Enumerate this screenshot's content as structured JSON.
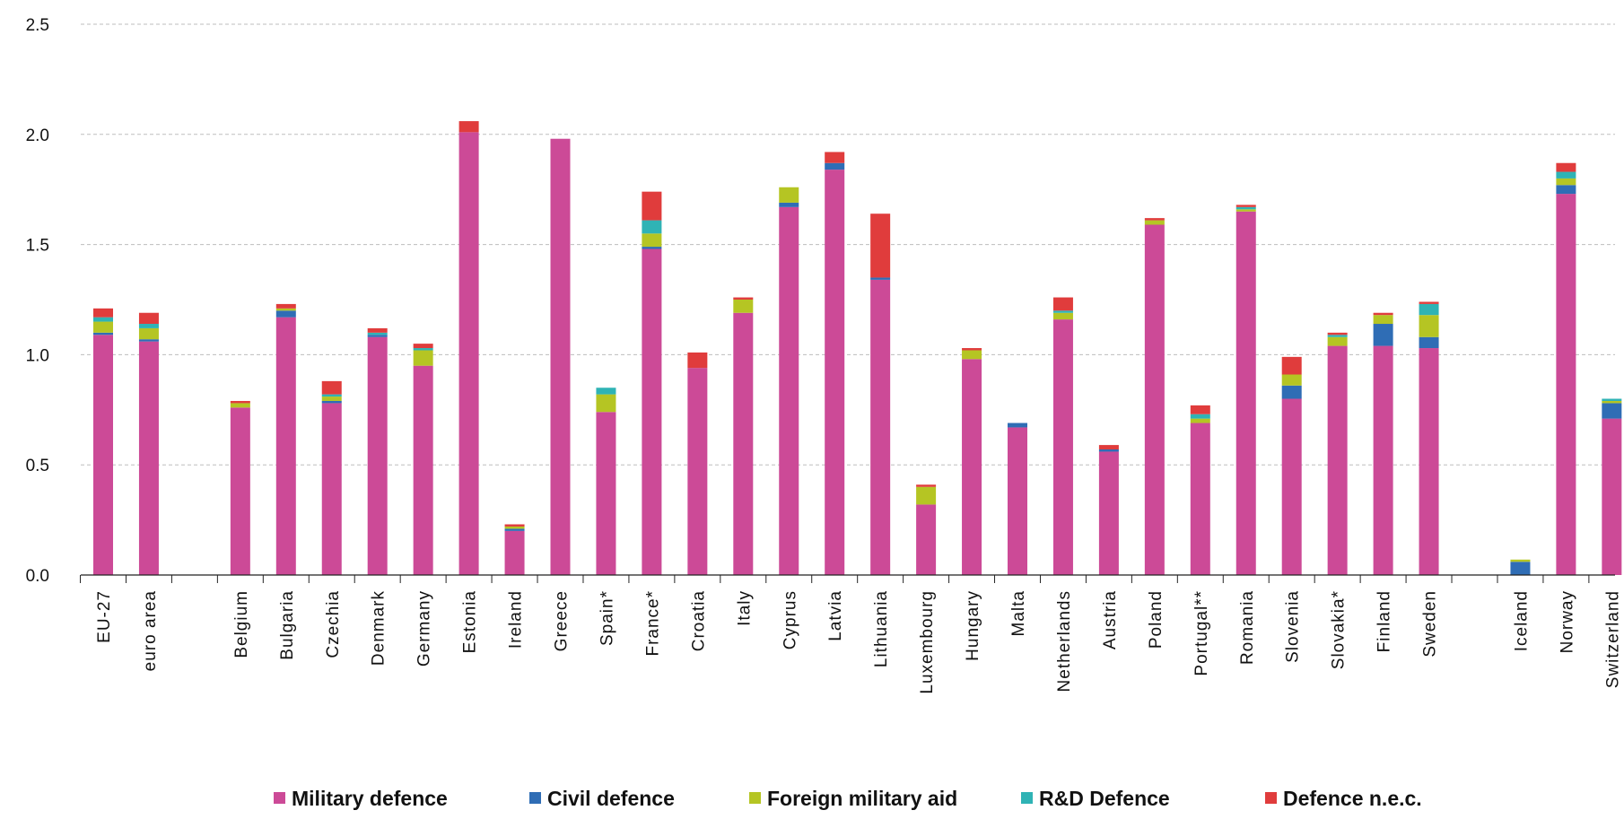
{
  "chart_data": {
    "type": "bar",
    "stacked": true,
    "title": "",
    "xlabel": "",
    "ylabel": "",
    "ylim": [
      0,
      2.5
    ],
    "yticks": [
      "0.0",
      "0.5",
      "1.0",
      "1.5",
      "2.0",
      "2.5"
    ],
    "grid": true,
    "legend_position": "bottom",
    "categories": [
      "EU-27",
      "euro area",
      "",
      "Belgium",
      "Bulgaria",
      "Czechia",
      "Denmark",
      "Germany",
      "Estonia",
      "Ireland",
      "Greece",
      "Spain*",
      "France*",
      "Croatia",
      "Italy",
      "Cyprus",
      "Latvia",
      "Lithuania",
      "Luxembourg",
      "Hungary",
      "Malta",
      "Netherlands",
      "Austria",
      "Poland",
      "Portugal**",
      "Romania",
      "Slovenia",
      "Slovakia*",
      "Finland",
      "Sweden",
      "",
      "Iceland",
      "Norway",
      "Switzerland"
    ],
    "series": [
      {
        "name": "Military defence",
        "color": "#cc4a97",
        "values": [
          1.09,
          1.06,
          null,
          0.76,
          1.17,
          0.78,
          1.08,
          0.95,
          2.01,
          0.2,
          1.98,
          0.74,
          1.48,
          0.94,
          1.19,
          1.67,
          1.84,
          1.34,
          0.32,
          0.98,
          0.67,
          1.16,
          0.56,
          1.59,
          0.69,
          1.65,
          0.8,
          1.04,
          1.04,
          1.03,
          null,
          0.0,
          1.73,
          0.71
        ]
      },
      {
        "name": "Civil defence",
        "color": "#2f6db5",
        "values": [
          0.01,
          0.01,
          null,
          0.0,
          0.03,
          0.01,
          0.01,
          0.0,
          0.0,
          0.01,
          0.0,
          0.0,
          0.01,
          0.0,
          0.0,
          0.02,
          0.03,
          0.01,
          0.0,
          0.0,
          0.02,
          0.0,
          0.01,
          0.0,
          0.0,
          0.0,
          0.06,
          0.0,
          0.1,
          0.05,
          null,
          0.06,
          0.04,
          0.07
        ]
      },
      {
        "name": "Foreign military aid",
        "color": "#b5c523",
        "values": [
          0.05,
          0.05,
          null,
          0.02,
          0.01,
          0.02,
          0.0,
          0.07,
          0.0,
          0.01,
          0.0,
          0.08,
          0.06,
          0.0,
          0.06,
          0.07,
          0.0,
          0.0,
          0.08,
          0.04,
          0.0,
          0.03,
          0.0,
          0.02,
          0.02,
          0.01,
          0.05,
          0.04,
          0.04,
          0.1,
          null,
          0.01,
          0.03,
          0.01
        ]
      },
      {
        "name": "R&D Defence",
        "color": "#2fb3b5",
        "values": [
          0.02,
          0.02,
          null,
          0.0,
          0.0,
          0.01,
          0.01,
          0.01,
          0.0,
          0.0,
          0.0,
          0.03,
          0.06,
          0.0,
          0.0,
          0.0,
          0.0,
          0.0,
          0.0,
          0.0,
          0.0,
          0.01,
          0.0,
          0.0,
          0.02,
          0.01,
          0.0,
          0.01,
          0.0,
          0.05,
          null,
          0.0,
          0.03,
          0.01
        ]
      },
      {
        "name": "Defence n.e.c.",
        "color": "#e03c3c",
        "values": [
          0.04,
          0.05,
          null,
          0.01,
          0.02,
          0.06,
          0.02,
          0.02,
          0.05,
          0.01,
          0.0,
          0.0,
          0.13,
          0.07,
          0.01,
          0.0,
          0.05,
          0.29,
          0.01,
          0.01,
          0.0,
          0.06,
          0.02,
          0.01,
          0.04,
          0.01,
          0.08,
          0.01,
          0.01,
          0.01,
          null,
          0.0,
          0.04,
          0.0
        ]
      }
    ]
  }
}
